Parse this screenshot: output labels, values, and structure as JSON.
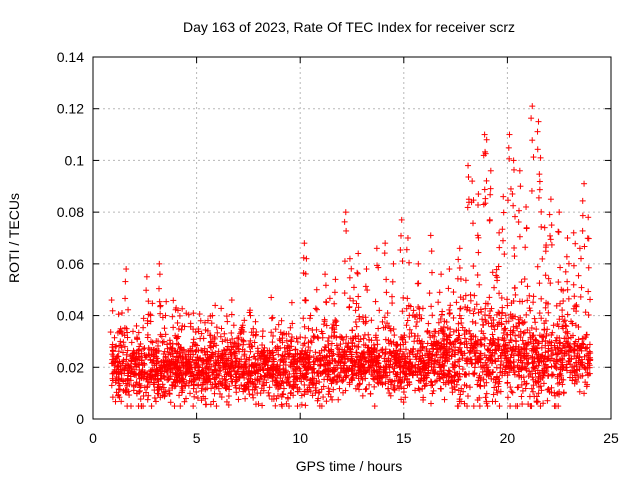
{
  "chart_data": {
    "type": "scatter",
    "title": "Day 163 of 2023, Rate Of TEC Index for receiver scrz",
    "xlabel": "GPS time / hours",
    "ylabel": "ROTI / TECUs",
    "xlim": [
      0,
      25
    ],
    "ylim": [
      0,
      0.14
    ],
    "xticks": [
      0,
      5,
      10,
      15,
      20,
      25
    ],
    "xtick_labels": [
      "0",
      "5",
      "10",
      "15",
      "20",
      "25"
    ],
    "yticks": [
      0,
      0.02,
      0.04,
      0.06,
      0.08,
      0.1,
      0.12,
      0.14
    ],
    "ytick_labels": [
      "0",
      "0.02",
      "0.04",
      "0.06",
      "0.08",
      "0.1",
      "0.12",
      "0.14"
    ],
    "grid": true,
    "marker": "plus",
    "color": "#ff0000",
    "series": [
      {
        "name": "ROTI",
        "x": [
          0.9,
          1.0,
          1.1,
          1.4,
          1.6,
          2.1,
          2.6,
          2.8,
          3.2,
          3.5,
          4.1,
          4.6,
          5.2,
          5.7,
          6.2,
          6.7,
          7.1,
          7.6,
          8.2,
          8.6,
          9.1,
          9.6,
          10.2,
          10.3,
          10.8,
          11.2,
          11.7,
          12.2,
          12.4,
          12.8,
          13.2,
          13.7,
          14.1,
          14.5,
          14.9,
          15.2,
          15.7,
          16.3,
          16.8,
          17.2,
          17.7,
          18.1,
          18.3,
          18.6,
          18.9,
          19.0,
          19.2,
          19.6,
          19.8,
          20.1,
          20.3,
          20.6,
          20.9,
          21.2,
          21.5,
          21.6,
          21.8,
          22.1,
          22.5,
          22.9,
          23.2,
          23.5,
          23.7,
          23.9
        ],
        "values": [
          0.046,
          0.022,
          0.015,
          0.041,
          0.058,
          0.036,
          0.055,
          0.03,
          0.06,
          0.04,
          0.042,
          0.026,
          0.038,
          0.03,
          0.035,
          0.046,
          0.033,
          0.04,
          0.034,
          0.047,
          0.038,
          0.045,
          0.068,
          0.062,
          0.05,
          0.056,
          0.054,
          0.08,
          0.062,
          0.064,
          0.058,
          0.066,
          0.068,
          0.06,
          0.077,
          0.07,
          0.06,
          0.071,
          0.056,
          0.058,
          0.066,
          0.098,
          0.092,
          0.087,
          0.11,
          0.108,
          0.096,
          0.072,
          0.086,
          0.11,
          0.1,
          0.096,
          0.082,
          0.121,
          0.115,
          0.101,
          0.074,
          0.085,
          0.08,
          0.07,
          0.072,
          0.066,
          0.091,
          0.078
        ]
      }
    ],
    "background_band": {
      "description": "dense cloud of points from 0.9 to 24 hours",
      "x_range": [
        0.9,
        24.0
      ],
      "y_typical_range": [
        0.006,
        0.035
      ]
    }
  }
}
